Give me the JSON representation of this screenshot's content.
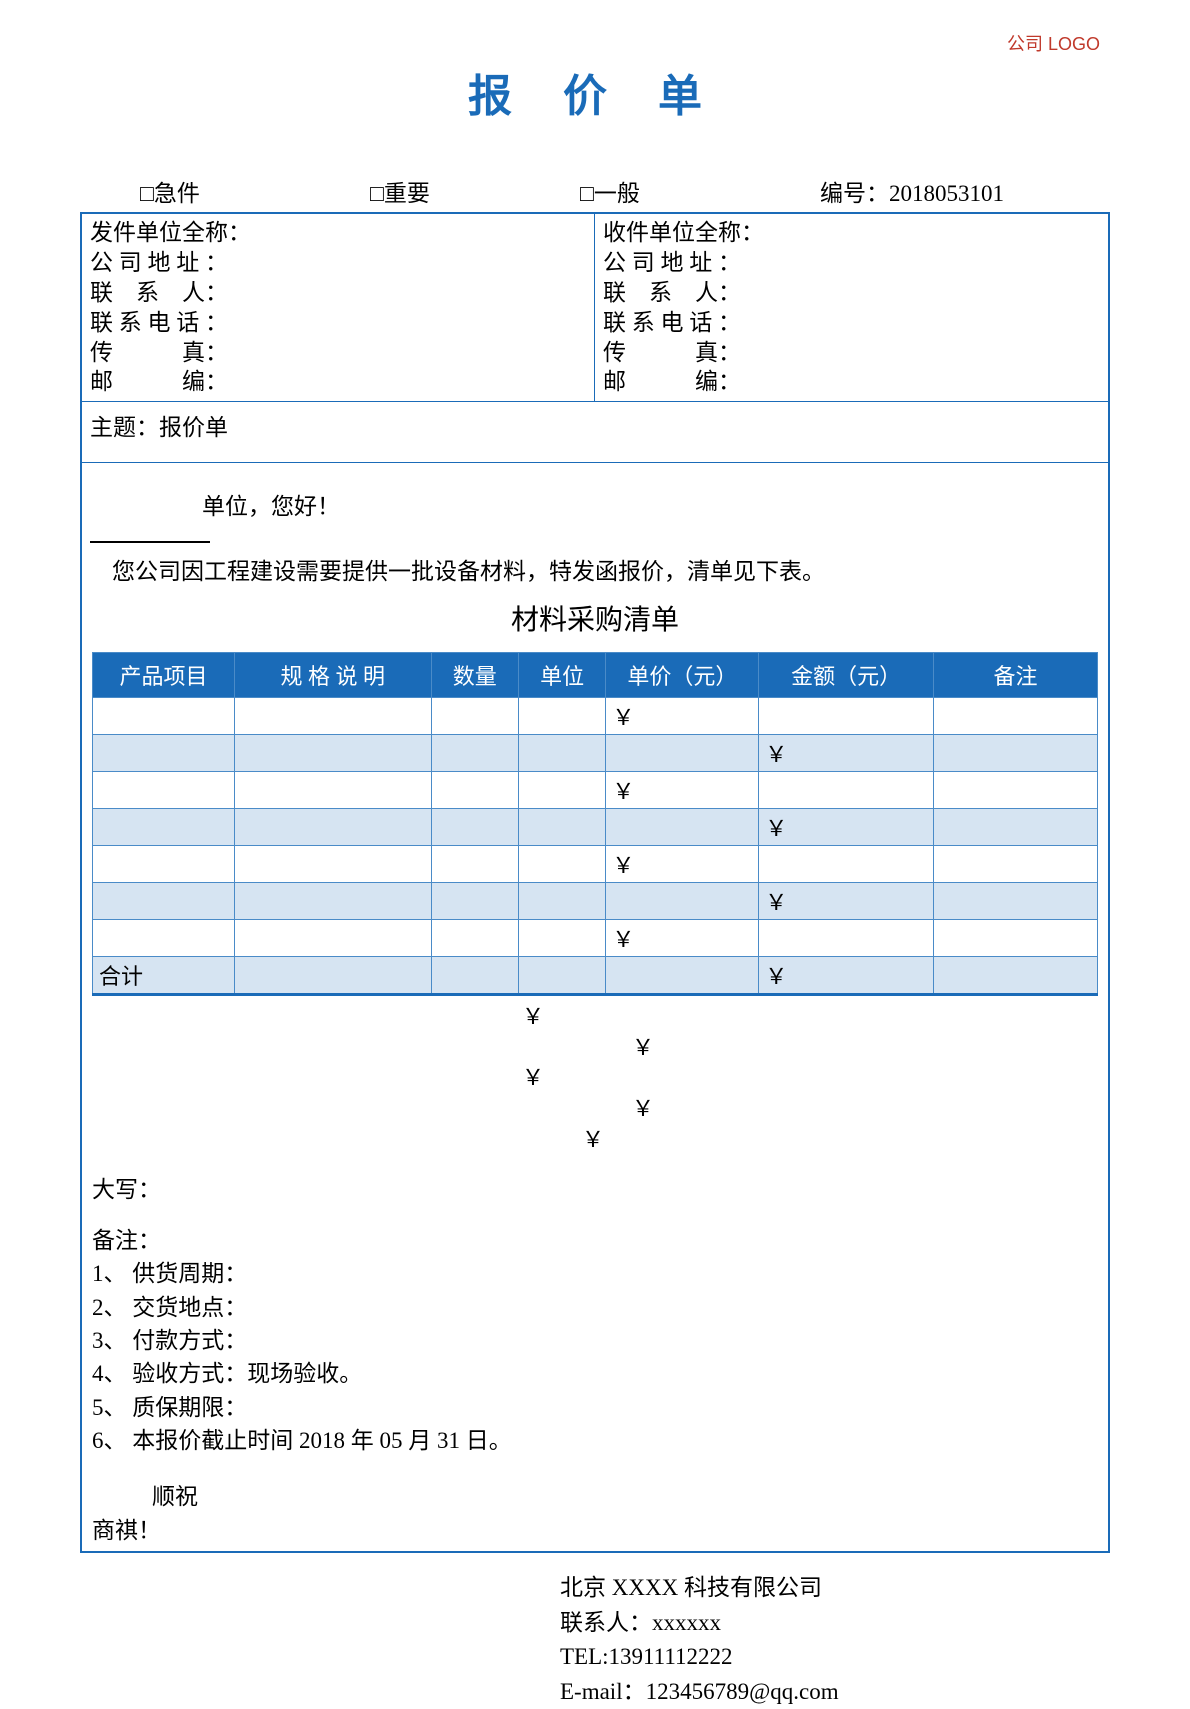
{
  "logo_text": "公司 LOGO",
  "title": "报 价 单",
  "priority": {
    "urgent": "□急件",
    "important": "□重要",
    "normal": "□一般",
    "serial_label": "编号：",
    "serial_value": "2018053101"
  },
  "sender": {
    "full_name": "发件单位全称：",
    "address": "公 司 地 址 ：",
    "contact": "联　系　人：",
    "phone": "联 系 电 话 ：",
    "fax": "传　　　真：",
    "zip": "邮　　　编："
  },
  "receiver": {
    "full_name": "收件单位全称：",
    "address": "公 司 地 址 ：",
    "contact": "联　系　人：",
    "phone": "联 系 电 话 ：",
    "fax": "传　　　真：",
    "zip": "邮　　　编："
  },
  "subject": "主题：报价单",
  "greeting": "单位，您好！",
  "letter_body": "您公司因工程建设需要提供一批设备材料，特发函报价，清单见下表。",
  "subtitle": "材料采购清单",
  "table": {
    "headers": {
      "item": "产品项目",
      "spec": "规 格 说 明",
      "qty": "数量",
      "unit": "单位",
      "uprice": "单价（元）",
      "amount": "金额（元）",
      "remark": "备注"
    },
    "yen": "￥",
    "total_label": "合计",
    "header_bg": "#1a6bb8",
    "header_color": "#ffffff",
    "alt_row_bg": "#d6e4f2"
  },
  "daxie": "大写：",
  "notes": {
    "title": "备注：",
    "n1": "1、 供货周期：",
    "n2": "2、 交货地点：",
    "n3": "3、 付款方式：",
    "n4": "4、 验收方式：现场验收。",
    "n5": "5、 质保期限：",
    "n6": "6、 本报价截止时间 2018 年 05 月 31 日。"
  },
  "closing": {
    "sx": "顺祝",
    "sq": "商祺！"
  },
  "footer": {
    "company": "北京 XXXX 科技有限公司",
    "contact": "联系人：xxxxxx",
    "tel": "TEL:13911112222",
    "email": "E-mail：123456789@qq.com"
  },
  "colors": {
    "primary": "#1a6bb8",
    "logo": "#c0392b"
  }
}
